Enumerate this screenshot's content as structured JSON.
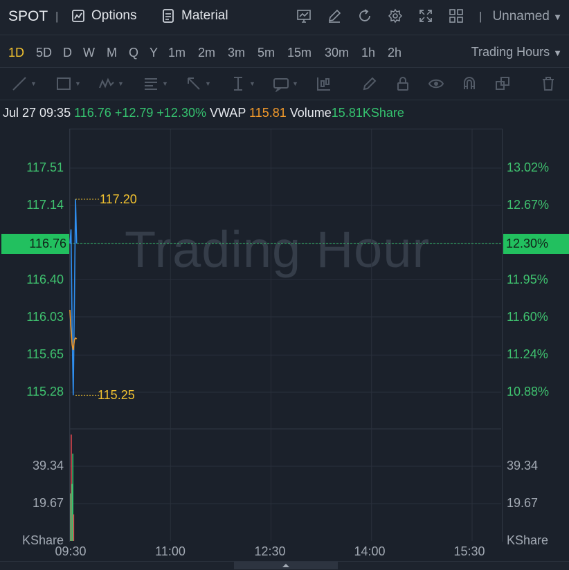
{
  "header": {
    "ticker": "SPOT",
    "options_label": "Options",
    "material_label": "Material",
    "layout_name": "Unnamed"
  },
  "timeframes": [
    "1D",
    "5D",
    "D",
    "W",
    "M",
    "Q",
    "Y",
    "1m",
    "2m",
    "3m",
    "5m",
    "15m",
    "30m",
    "1h",
    "2h"
  ],
  "active_timeframe": "1D",
  "session_selector": "Trading Hours",
  "info": {
    "datetime": "Jul 27 09:35",
    "price": "116.76",
    "change": "+12.79",
    "change_pct": "+12.30%",
    "vwap_label": "VWAP",
    "vwap_value": "115.81",
    "volume_label": "Volume",
    "volume_value": "15.81KShare"
  },
  "watermark": "Trading Hour",
  "colors": {
    "up": "#35c26f",
    "down": "#e0464e",
    "price_line": "#2f8ff0",
    "vwap_line": "#f39a2b",
    "accent": "#f2c230",
    "background": "#1b212b"
  },
  "icons": [
    "indicator-icon",
    "edit-icon",
    "refresh-icon",
    "gear-icon",
    "fullscreen-icon",
    "grid-layout-icon"
  ],
  "chart_data": {
    "type": "line",
    "price_axis": {
      "ticks_left": [
        "117.51",
        "117.14",
        "116.76",
        "116.40",
        "116.03",
        "115.65",
        "115.28"
      ],
      "ticks_right": [
        "13.02%",
        "12.67%",
        "12.30%",
        "11.95%",
        "11.60%",
        "11.24%",
        "10.88%"
      ],
      "tick_values": [
        117.51,
        117.14,
        116.76,
        116.4,
        116.03,
        115.65,
        115.28
      ],
      "current_price": "116.76",
      "current_pct": "12.30%"
    },
    "x_axis": {
      "ticks": [
        "09:30",
        "11:00",
        "12:30",
        "14:00",
        "15:30"
      ],
      "tick_minutes": [
        570,
        660,
        750,
        840,
        930
      ],
      "range_minutes": [
        570,
        956
      ]
    },
    "series": [
      {
        "name": "Price",
        "x": [
          570,
          571,
          572,
          573,
          574,
          575,
          576
        ],
        "y": [
          116.76,
          116.9,
          115.9,
          115.25,
          116.2,
          117.2,
          116.76
        ]
      },
      {
        "name": "VWAP",
        "x": [
          570,
          571,
          572,
          573,
          574,
          575,
          576
        ],
        "y": [
          116.1,
          115.9,
          115.75,
          115.7,
          115.8,
          115.82,
          115.81
        ]
      }
    ],
    "annotations": [
      {
        "label": "117.20",
        "value": 117.2
      },
      {
        "label": "115.25",
        "value": 115.25
      }
    ],
    "volume_axis": {
      "ticks": [
        "39.34",
        "19.67"
      ],
      "tick_values": [
        39.34,
        19.67
      ],
      "unit": "KShare"
    },
    "volume_bars": [
      {
        "x": 570.5,
        "value": 25,
        "color": "#35c26f"
      },
      {
        "x": 571.2,
        "value": 56,
        "color": "#e0464e"
      },
      {
        "x": 571.9,
        "value": 30,
        "color": "#35c26f"
      },
      {
        "x": 572.6,
        "value": 46,
        "color": "#35c26f"
      },
      {
        "x": 573.3,
        "value": 14,
        "color": "#e0464e"
      }
    ]
  }
}
